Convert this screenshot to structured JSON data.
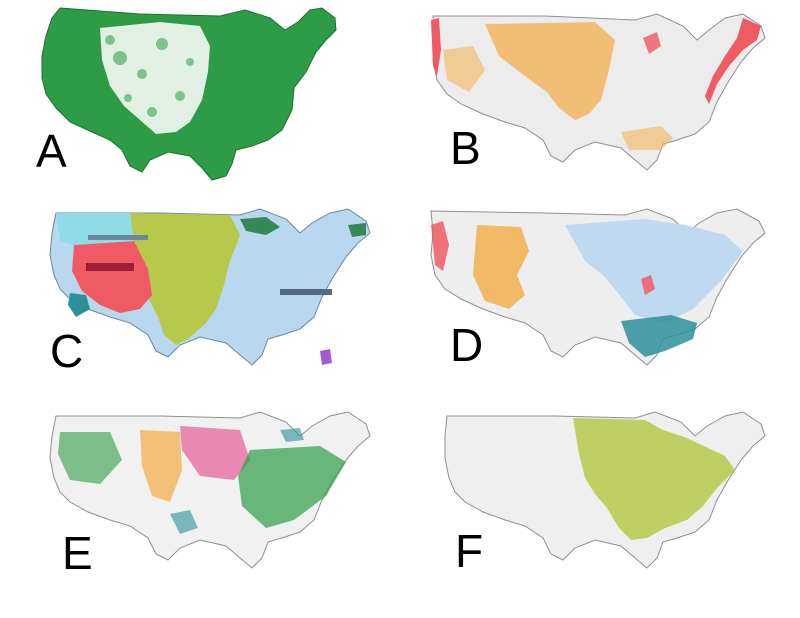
{
  "panels": [
    {
      "letter": "A",
      "fill": "#2e9c46",
      "edge": "#1d6e30",
      "theme": "forest-cover"
    },
    {
      "letter": "B",
      "fill": "#ececec",
      "edge": "#8f8f8f",
      "theme": "orange-red-coverage"
    },
    {
      "letter": "C",
      "fill": "#b9d7ef",
      "edge": "#6d86a0",
      "theme": "categorical-regions"
    },
    {
      "letter": "D",
      "fill": "#eeeeee",
      "edge": "#8f8f8f",
      "theme": "blue-orange-coverage"
    },
    {
      "letter": "E",
      "fill": "#f1f1f1",
      "edge": "#8f8f8f",
      "theme": "mixed-point-classes"
    },
    {
      "letter": "F",
      "fill": "#efefef",
      "edge": "#8f8f8f",
      "theme": "lime-eastern-coverage"
    }
  ],
  "palette": {
    "green": "#2e9c46",
    "orange": "#f2b04e",
    "red": "#ef5a64",
    "lightblue": "#b9d7ef",
    "teal": "#2c8f9a",
    "lime": "#b7c94a",
    "cyan": "#8fdbe6",
    "pink": "#e76fa3",
    "darkgreen": "#1f7a3a",
    "purple": "#a35bd1"
  }
}
